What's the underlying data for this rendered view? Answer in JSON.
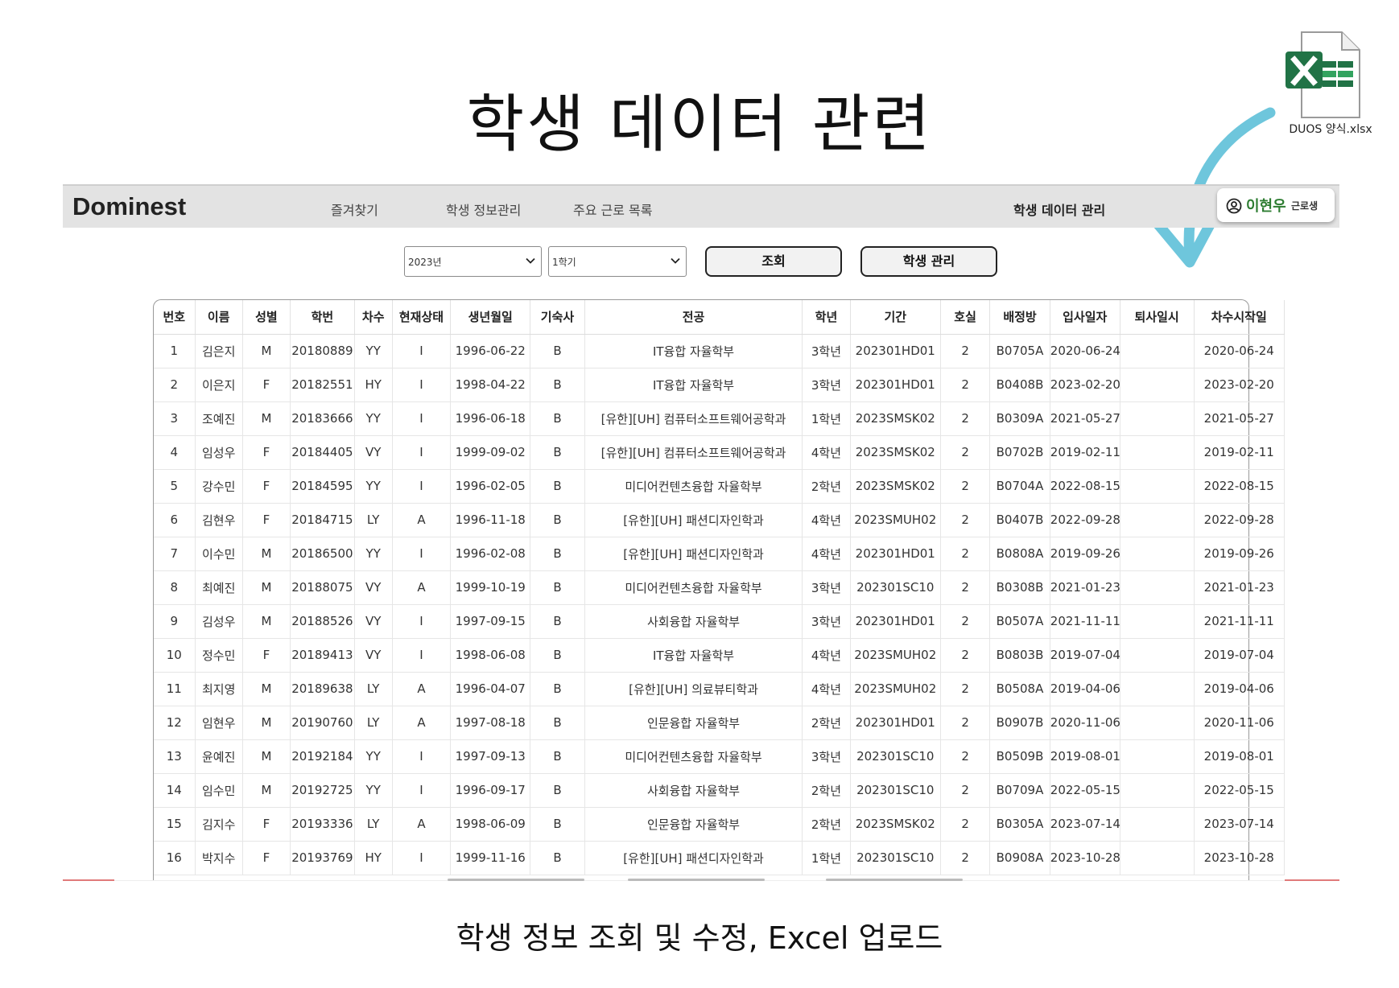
{
  "heading": "학생 데이터 관련",
  "caption": "학생 정보 조회 및 수정, Excel 업로드",
  "file": {
    "name": "DUOS 양식.xlsx",
    "icon": "excel-file-icon",
    "color": "#217346"
  },
  "app": {
    "logo": "Dominest",
    "nav": [
      "즐겨찾기",
      "학생 정보관리",
      "주요 근로 목록",
      "학생 데이터 관리"
    ],
    "user": {
      "name": "이현우",
      "role": "근로생",
      "icon": "user-circle-icon"
    }
  },
  "filters": {
    "year": "2023년",
    "semester": "1학기"
  },
  "buttons": {
    "search": "조회",
    "manage": "학생 관리"
  },
  "table": {
    "columns": [
      "번호",
      "이름",
      "성별",
      "학번",
      "차수",
      "현재상태",
      "생년월일",
      "기숙사",
      "전공",
      "학년",
      "기간",
      "호실",
      "배정방",
      "입사일자",
      "퇴사일시",
      "차수시작일"
    ],
    "rows": [
      [
        "1",
        "김은지",
        "M",
        "20180889",
        "YY",
        "I",
        "1996-06-22",
        "B",
        "IT융합 자율학부",
        "3학년",
        "202301HD01",
        "2",
        "B0705A",
        "2020-06-24",
        "",
        "2020-06-24"
      ],
      [
        "2",
        "이은지",
        "F",
        "20182551",
        "HY",
        "I",
        "1998-04-22",
        "B",
        "IT융합 자율학부",
        "3학년",
        "202301HD01",
        "2",
        "B0408B",
        "2023-02-20",
        "",
        "2023-02-20"
      ],
      [
        "3",
        "조예진",
        "M",
        "20183666",
        "YY",
        "I",
        "1996-06-18",
        "B",
        "[유한][UH] 컴퓨터소프트웨어공학과",
        "1학년",
        "2023SMSK02",
        "2",
        "B0309A",
        "2021-05-27",
        "",
        "2021-05-27"
      ],
      [
        "4",
        "임성우",
        "F",
        "20184405",
        "VY",
        "I",
        "1999-09-02",
        "B",
        "[유한][UH] 컴퓨터소프트웨어공학과",
        "4학년",
        "2023SMSK02",
        "2",
        "B0702B",
        "2019-02-11",
        "",
        "2019-02-11"
      ],
      [
        "5",
        "강수민",
        "F",
        "20184595",
        "YY",
        "I",
        "1996-02-05",
        "B",
        "미디어컨텐츠융합 자율학부",
        "2학년",
        "2023SMSK02",
        "2",
        "B0704A",
        "2022-08-15",
        "",
        "2022-08-15"
      ],
      [
        "6",
        "김현우",
        "F",
        "20184715",
        "LY",
        "A",
        "1996-11-18",
        "B",
        "[유한][UH] 패션디자인학과",
        "4학년",
        "2023SMUH02",
        "2",
        "B0407B",
        "2022-09-28",
        "",
        "2022-09-28"
      ],
      [
        "7",
        "이수민",
        "M",
        "20186500",
        "YY",
        "I",
        "1996-02-08",
        "B",
        "[유한][UH] 패션디자인학과",
        "4학년",
        "202301HD01",
        "2",
        "B0808A",
        "2019-09-26",
        "",
        "2019-09-26"
      ],
      [
        "8",
        "최예진",
        "M",
        "20188075",
        "VY",
        "A",
        "1999-10-19",
        "B",
        "미디어컨텐츠융합 자율학부",
        "3학년",
        "202301SC10",
        "2",
        "B0308B",
        "2021-01-23",
        "",
        "2021-01-23"
      ],
      [
        "9",
        "김성우",
        "M",
        "20188526",
        "VY",
        "I",
        "1997-09-15",
        "B",
        "사회융합 자율학부",
        "3학년",
        "202301HD01",
        "2",
        "B0507A",
        "2021-11-11",
        "",
        "2021-11-11"
      ],
      [
        "10",
        "정수민",
        "F",
        "20189413",
        "VY",
        "I",
        "1998-06-08",
        "B",
        "IT융합 자율학부",
        "4학년",
        "2023SMUH02",
        "2",
        "B0803B",
        "2019-07-04",
        "",
        "2019-07-04"
      ],
      [
        "11",
        "최지영",
        "M",
        "20189638",
        "LY",
        "A",
        "1996-04-07",
        "B",
        "[유한][UH] 의료뷰티학과",
        "4학년",
        "2023SMUH02",
        "2",
        "B0508A",
        "2019-04-06",
        "",
        "2019-04-06"
      ],
      [
        "12",
        "임현우",
        "M",
        "20190760",
        "LY",
        "A",
        "1997-08-18",
        "B",
        "인문융합 자율학부",
        "2학년",
        "202301HD01",
        "2",
        "B0907B",
        "2020-11-06",
        "",
        "2020-11-06"
      ],
      [
        "13",
        "윤예진",
        "M",
        "20192184",
        "YY",
        "I",
        "1997-09-13",
        "B",
        "미디어컨텐츠융합 자율학부",
        "3학년",
        "202301SC10",
        "2",
        "B0509B",
        "2019-08-01",
        "",
        "2019-08-01"
      ],
      [
        "14",
        "임수민",
        "M",
        "20192725",
        "YY",
        "I",
        "1996-09-17",
        "B",
        "사회융합 자율학부",
        "2학년",
        "202301SC10",
        "2",
        "B0709A",
        "2022-05-15",
        "",
        "2022-05-15"
      ],
      [
        "15",
        "김지수",
        "F",
        "20193336",
        "LY",
        "A",
        "1998-06-09",
        "B",
        "인문융합 자율학부",
        "2학년",
        "2023SMSK02",
        "2",
        "B0305A",
        "2023-07-14",
        "",
        "2023-07-14"
      ],
      [
        "16",
        "박지수",
        "F",
        "20193769",
        "HY",
        "I",
        "1999-11-16",
        "B",
        "[유한][UH] 패션디자인학과",
        "1학년",
        "202301SC10",
        "2",
        "B0908A",
        "2023-10-28",
        "",
        "2023-10-28"
      ]
    ]
  },
  "colors": {
    "arrow": "#6ec6dc",
    "user_name": "#2e7d32",
    "appbar": "#e3e3e3"
  }
}
